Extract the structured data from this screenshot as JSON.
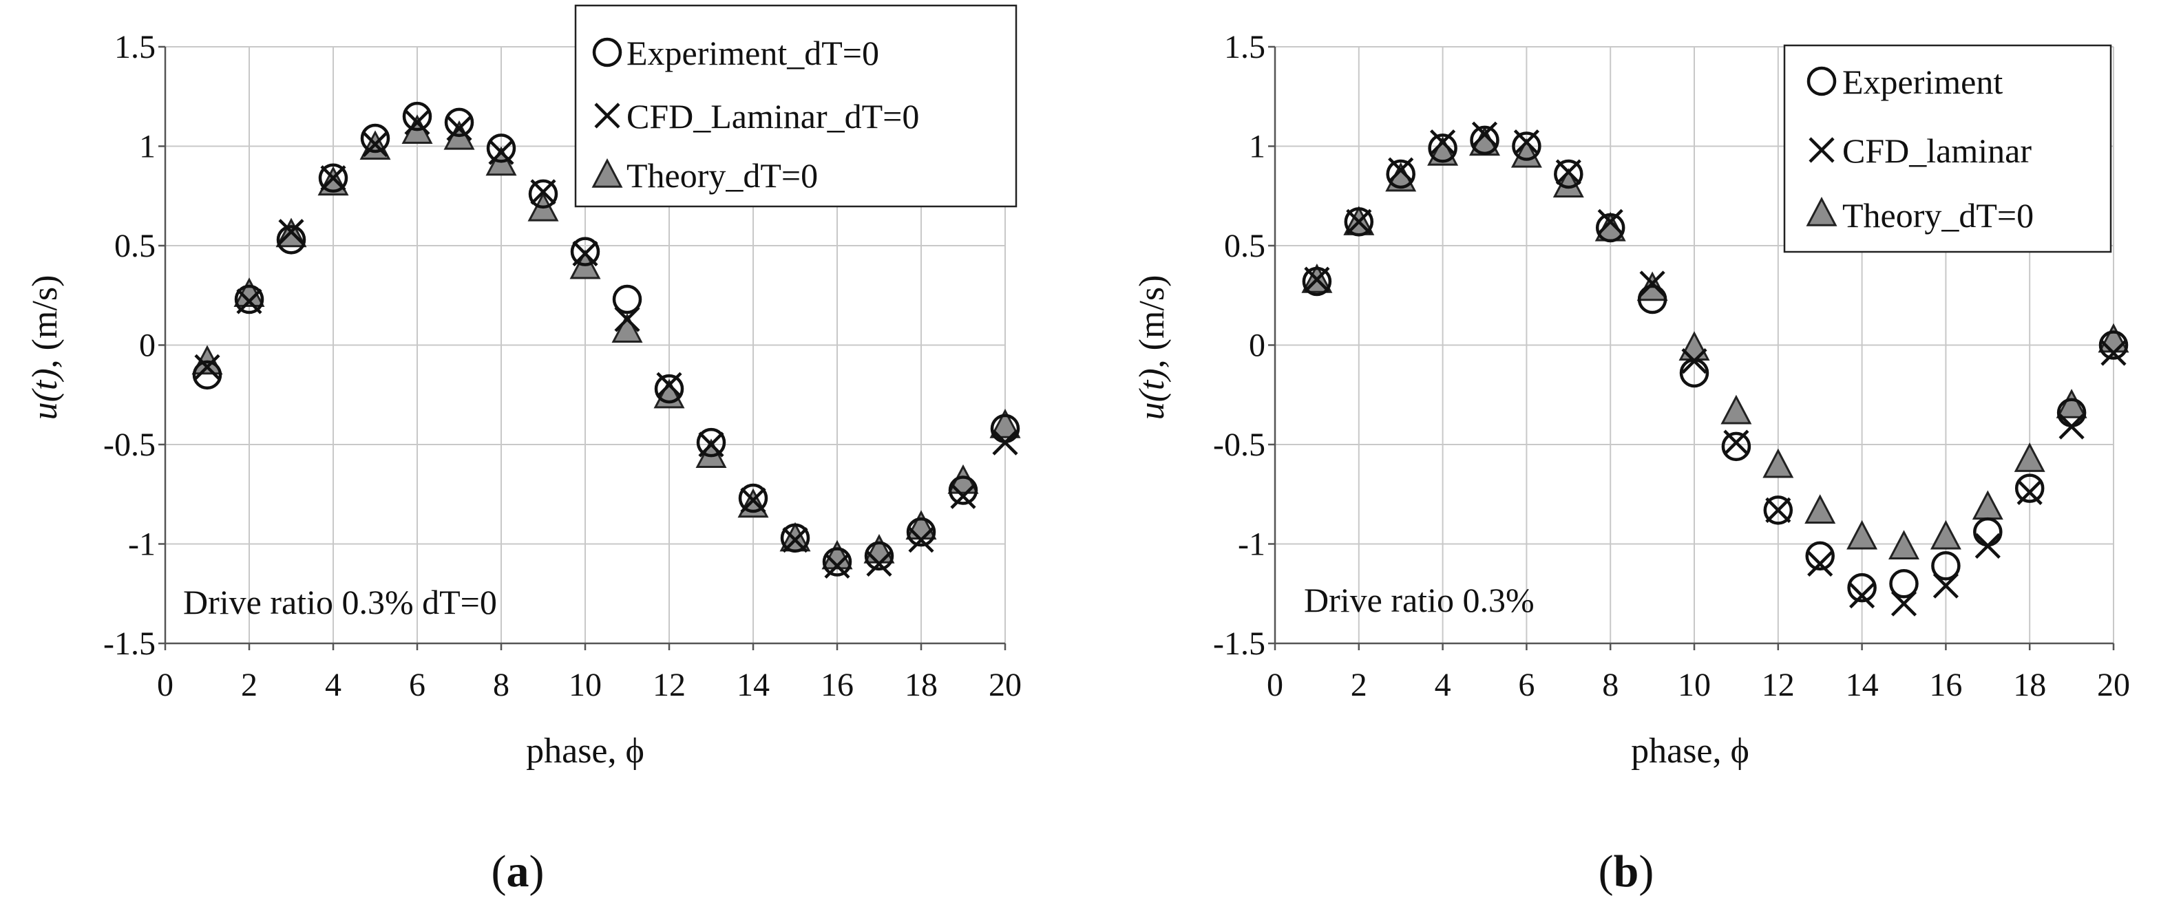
{
  "chart_data": [
    {
      "type": "scatter",
      "panel_label": "a",
      "xlabel": "phase, ϕ",
      "ylabel_italic": "u(t)",
      "ylabel_rest": ", (m/s)",
      "xlim": [
        0,
        20
      ],
      "ylim": [
        -1.5,
        1.5
      ],
      "xticks": [
        "0",
        "2",
        "4",
        "6",
        "8",
        "10",
        "12",
        "14",
        "16",
        "18",
        "20"
      ],
      "yticks": [
        "1.5",
        "1",
        "0.5",
        "0",
        "-0.5",
        "-1",
        "-1.5"
      ],
      "grid": true,
      "legend_position": "top-right",
      "annotation": "Drive ratio 0.3% dT=0",
      "x": [
        1,
        2,
        3,
        4,
        5,
        6,
        7,
        8,
        9,
        10,
        11,
        12,
        13,
        14,
        15,
        16,
        17,
        18,
        19,
        20
      ],
      "series": [
        {
          "name": "Experiment_dT=0",
          "marker": "circle",
          "values": [
            -0.15,
            0.23,
            0.53,
            0.84,
            1.04,
            1.15,
            1.12,
            0.99,
            0.76,
            0.47,
            0.23,
            -0.22,
            -0.49,
            -0.77,
            -0.97,
            -1.09,
            -1.06,
            -0.94,
            -0.73,
            -0.42
          ]
        },
        {
          "name": "CFD_Laminar_dT=0",
          "marker": "x",
          "values": [
            -0.11,
            0.22,
            0.57,
            0.84,
            1.01,
            1.12,
            1.09,
            0.97,
            0.77,
            0.46,
            0.13,
            -0.2,
            -0.5,
            -0.78,
            -0.98,
            -1.11,
            -1.1,
            -0.98,
            -0.76,
            -0.49
          ]
        },
        {
          "name": "Theory_dT=0",
          "marker": "triangle",
          "values": [
            -0.09,
            0.25,
            0.55,
            0.81,
            0.99,
            1.07,
            1.04,
            0.91,
            0.68,
            0.39,
            0.07,
            -0.26,
            -0.56,
            -0.81,
            -0.98,
            -1.07,
            -1.04,
            -0.92,
            -0.69,
            -0.41
          ]
        }
      ]
    },
    {
      "type": "scatter",
      "panel_label": "b",
      "xlabel": "phase, ϕ",
      "ylabel_italic": "u(t)",
      "ylabel_rest": ", (m/s)",
      "xlim": [
        0,
        20
      ],
      "ylim": [
        -1.5,
        1.5
      ],
      "xticks": [
        "0",
        "2",
        "4",
        "6",
        "8",
        "10",
        "12",
        "14",
        "16",
        "18",
        "20"
      ],
      "yticks": [
        "1.5",
        "1",
        "0.5",
        "0",
        "-0.5",
        "-1",
        "-1.5"
      ],
      "grid": true,
      "legend_position": "top-right",
      "annotation": "Drive ratio 0.3%",
      "x": [
        1,
        2,
        3,
        4,
        5,
        6,
        7,
        8,
        9,
        10,
        11,
        12,
        13,
        14,
        15,
        16,
        17,
        18,
        19,
        20
      ],
      "series": [
        {
          "name": "Experiment",
          "marker": "circle",
          "values": [
            0.32,
            0.62,
            0.86,
            0.99,
            1.03,
            1.0,
            0.86,
            0.59,
            0.23,
            -0.14,
            -0.51,
            -0.83,
            -1.06,
            -1.22,
            -1.2,
            -1.11,
            -0.94,
            -0.72,
            -0.34,
            0.0
          ]
        },
        {
          "name": "CFD_laminar",
          "marker": "x",
          "values": [
            0.33,
            0.62,
            0.88,
            1.02,
            1.06,
            1.02,
            0.87,
            0.62,
            0.31,
            -0.08,
            -0.49,
            -0.83,
            -1.1,
            -1.26,
            -1.3,
            -1.21,
            -1.01,
            -0.74,
            -0.41,
            -0.04
          ]
        },
        {
          "name": "Theory_dT=0",
          "marker": "triangle",
          "values": [
            0.32,
            0.61,
            0.83,
            0.96,
            1.01,
            0.95,
            0.8,
            0.58,
            0.28,
            -0.02,
            -0.34,
            -0.61,
            -0.84,
            -0.97,
            -1.02,
            -0.97,
            -0.82,
            -0.58,
            -0.31,
            0.02
          ]
        }
      ]
    }
  ]
}
